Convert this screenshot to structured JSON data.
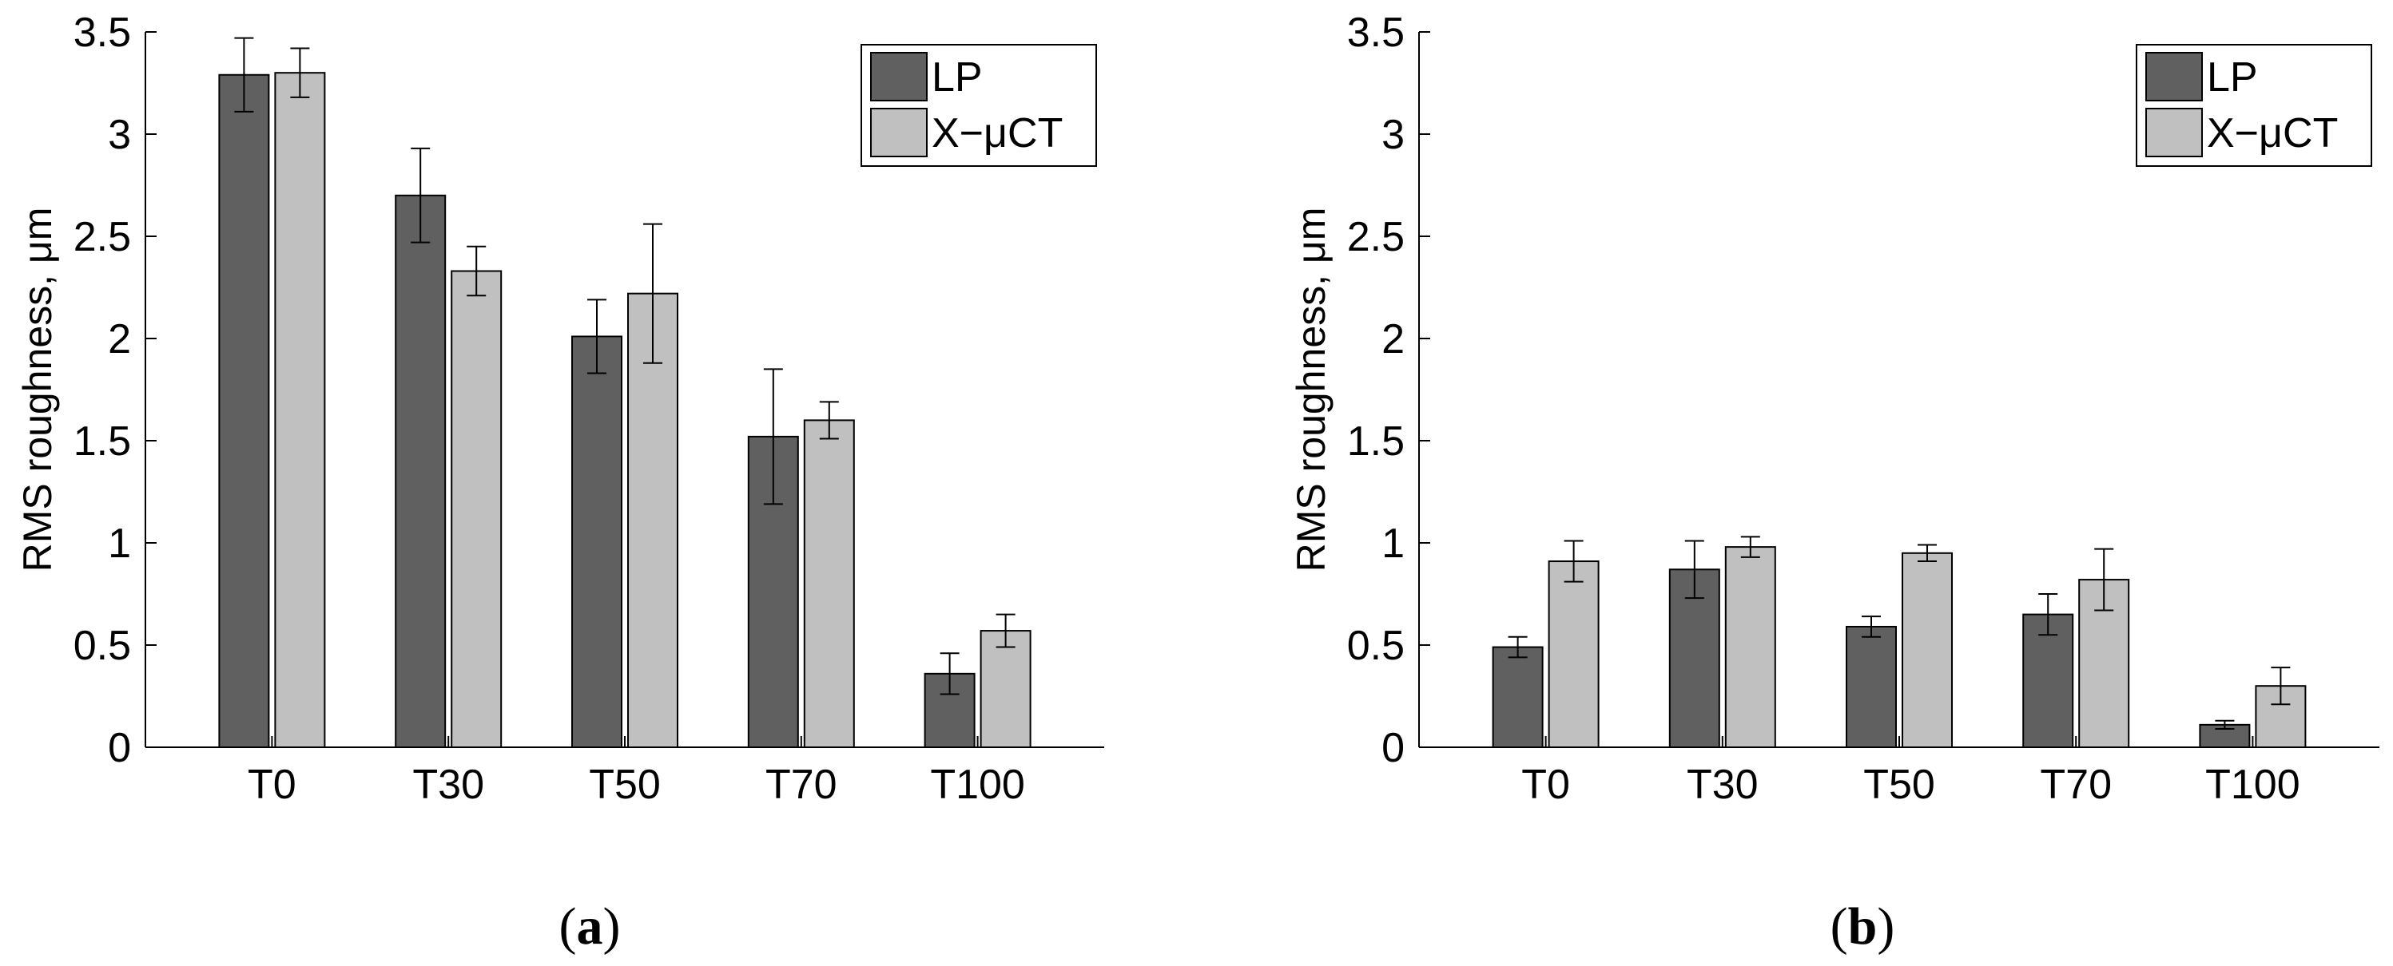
{
  "chart_data": [
    {
      "type": "bar",
      "panel_label": "a",
      "categories": [
        "T0",
        "T30",
        "T50",
        "T70",
        "T100"
      ],
      "ylabel": "RMS roughness, μm",
      "xlabel": "",
      "ylim": [
        0,
        3.5
      ],
      "yticks": [
        "0",
        "0.5",
        "1",
        "1.5",
        "2",
        "2.5",
        "3",
        "3.5"
      ],
      "legend_position": "top-right",
      "series": [
        {
          "name": "LP",
          "color": "#606060",
          "values": [
            3.29,
            2.7,
            2.01,
            1.52,
            0.36
          ],
          "errors": [
            0.18,
            0.23,
            0.18,
            0.33,
            0.1
          ]
        },
        {
          "name": "X−μCT",
          "color": "#c0c0c0",
          "values": [
            3.3,
            2.33,
            2.22,
            1.6,
            0.57
          ],
          "errors": [
            0.12,
            0.12,
            0.34,
            0.09,
            0.08
          ]
        }
      ]
    },
    {
      "type": "bar",
      "panel_label": "b",
      "categories": [
        "T0",
        "T30",
        "T50",
        "T70",
        "T100"
      ],
      "ylabel": "RMS roughness, μm",
      "xlabel": "",
      "ylim": [
        0,
        3.5
      ],
      "yticks": [
        "0",
        "0.5",
        "1",
        "1.5",
        "2",
        "2.5",
        "3",
        "3.5"
      ],
      "legend_position": "top-right",
      "series": [
        {
          "name": "LP",
          "color": "#606060",
          "values": [
            0.49,
            0.87,
            0.59,
            0.65,
            0.11
          ],
          "errors": [
            0.05,
            0.14,
            0.05,
            0.1,
            0.02
          ]
        },
        {
          "name": "X−μCT",
          "color": "#c0c0c0",
          "values": [
            0.91,
            0.98,
            0.95,
            0.82,
            0.3
          ],
          "errors": [
            0.1,
            0.05,
            0.04,
            0.15,
            0.09
          ]
        }
      ]
    }
  ]
}
